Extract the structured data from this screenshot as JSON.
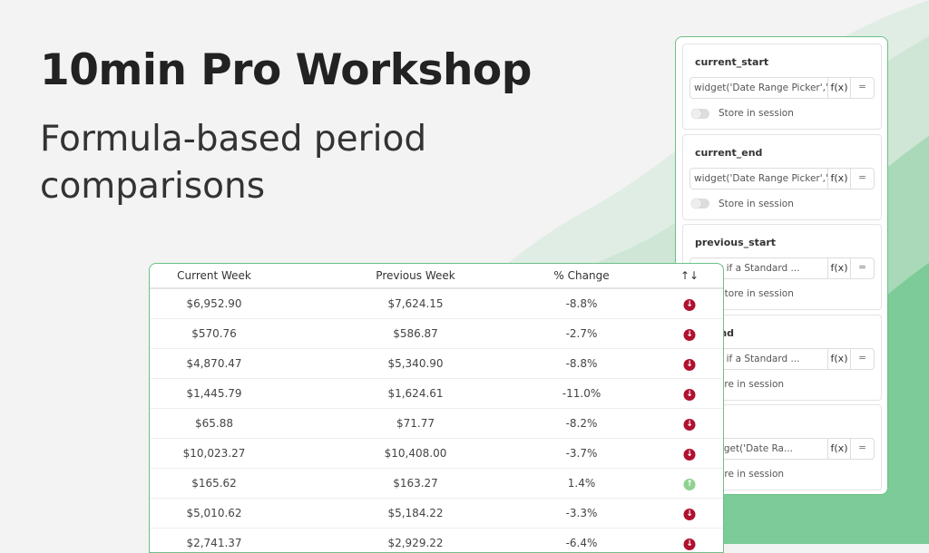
{
  "title": "10min Pro Workshop",
  "subtitle": "Formula-based period comparisons",
  "colors": {
    "accent": "#6cc08a",
    "down": "#b0112f",
    "up": "#8fd18f"
  },
  "panel": {
    "cards": [
      {
        "label": "current_start",
        "value": "widget('Date Range Picker','...",
        "fx": "f(x)",
        "eq": "=",
        "toggle": "Store in session"
      },
      {
        "label": "current_end",
        "value": "widget('Date Range Picker','...",
        "fx": "f(x)",
        "eq": "=",
        "toggle": "Store in session"
      },
      {
        "label": "previous_start",
        "value": "Check if a Standard ...",
        "fx": "f(x)",
        "eq": "=",
        "toggle": "Store in session"
      },
      {
        "label": "us_end",
        "value": "Check if a Standard ...",
        "fx": "f(x)",
        "eq": "=",
        "toggle": "ore in session"
      },
      {
        "label": "ff",
        "value": "ff(   widget('Date Ra...",
        "fx": "f(x)",
        "eq": "=",
        "toggle": "ore in session"
      }
    ]
  },
  "table": {
    "headers": [
      "Current Week",
      "Previous Week",
      "% Change",
      "↑↓"
    ],
    "rows": [
      [
        "$6,952.90",
        "$7,624.15",
        "-8.8%",
        "down"
      ],
      [
        "$570.76",
        "$586.87",
        "-2.7%",
        "down"
      ],
      [
        "$4,870.47",
        "$5,340.90",
        "-8.8%",
        "down"
      ],
      [
        "$1,445.79",
        "$1,624.61",
        "-11.0%",
        "down"
      ],
      [
        "$65.88",
        "$71.77",
        "-8.2%",
        "down"
      ],
      [
        "$10,023.27",
        "$10,408.00",
        "-3.7%",
        "down"
      ],
      [
        "$165.62",
        "$163.27",
        "1.4%",
        "up"
      ],
      [
        "$5,010.62",
        "$5,184.22",
        "-3.3%",
        "down"
      ],
      [
        "$2,741.37",
        "$2,929.22",
        "-6.4%",
        "down"
      ]
    ]
  }
}
